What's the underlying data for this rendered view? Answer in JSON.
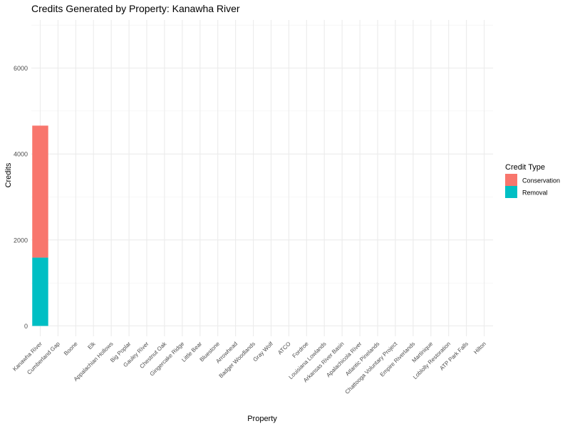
{
  "chart_data": {
    "type": "bar",
    "stacked": true,
    "title": "Credits Generated by Property: Kanawha River",
    "xlabel": "Property",
    "ylabel": "Credits",
    "categories": [
      "Kanawha River",
      "Cumberland Gap",
      "Boone",
      "Elk",
      "Appalachian Hollows",
      "Big Poplar",
      "Gauley River",
      "Chestnut Oak",
      "Gingercake Ridge",
      "Little Bear",
      "Bluestone",
      "Arrowhead",
      "Badger Woodlands",
      "Gray Wolf",
      "ATCO",
      "Fordroe",
      "Louisiana Lowlands",
      "Arkansas River Basin",
      "Apalachicola River",
      "Atlantic Pinelands",
      "Chattooga Voluntary Project",
      "Empire Riverlands",
      "Martinique",
      "Loblolly Restoration",
      "ATP Park Falls",
      "Hilton"
    ],
    "series": [
      {
        "name": "Removal",
        "color": "#00BFC4",
        "values": [
          1590,
          0,
          0,
          0,
          0,
          0,
          0,
          0,
          0,
          0,
          0,
          0,
          0,
          0,
          0,
          0,
          0,
          0,
          0,
          0,
          0,
          0,
          0,
          0,
          0,
          0
        ]
      },
      {
        "name": "Conservation",
        "color": "#F8766D",
        "values": [
          3070,
          0,
          0,
          0,
          0,
          0,
          0,
          0,
          0,
          0,
          0,
          0,
          0,
          0,
          0,
          0,
          0,
          0,
          0,
          0,
          0,
          0,
          0,
          0,
          0,
          0
        ]
      }
    ],
    "ylim": [
      0,
      7000
    ],
    "yticks": [
      0,
      2000,
      4000,
      6000
    ],
    "grid": true,
    "legend": {
      "title": "Credit Type",
      "position": "right",
      "entries": [
        "Conservation",
        "Removal"
      ]
    }
  }
}
